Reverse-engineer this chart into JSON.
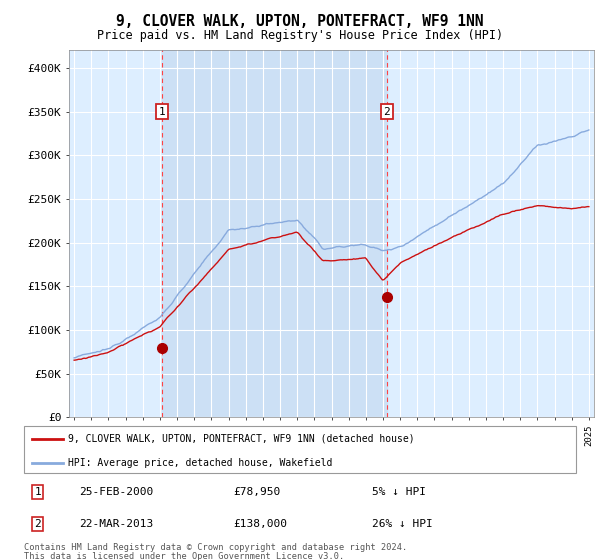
{
  "title": "9, CLOVER WALK, UPTON, PONTEFRACT, WF9 1NN",
  "subtitle": "Price paid vs. HM Land Registry's House Price Index (HPI)",
  "legend_line1": "9, CLOVER WALK, UPTON, PONTEFRACT, WF9 1NN (detached house)",
  "legend_line2": "HPI: Average price, detached house, Wakefield",
  "sale1_date": "25-FEB-2000",
  "sale1_price": 78950,
  "sale1_label": "1",
  "sale1_pct": "5% ↓ HPI",
  "sale1_year": 2000.13,
  "sale2_date": "22-MAR-2013",
  "sale2_price": 138000,
  "sale2_label": "2",
  "sale2_pct": "26% ↓ HPI",
  "sale2_year": 2013.22,
  "footer": "Contains HM Land Registry data © Crown copyright and database right 2024.\nThis data is licensed under the Open Government Licence v3.0.",
  "ylim_max": 400000,
  "plot_bg": "#ddeeff",
  "shade_color": "#cce0f5"
}
